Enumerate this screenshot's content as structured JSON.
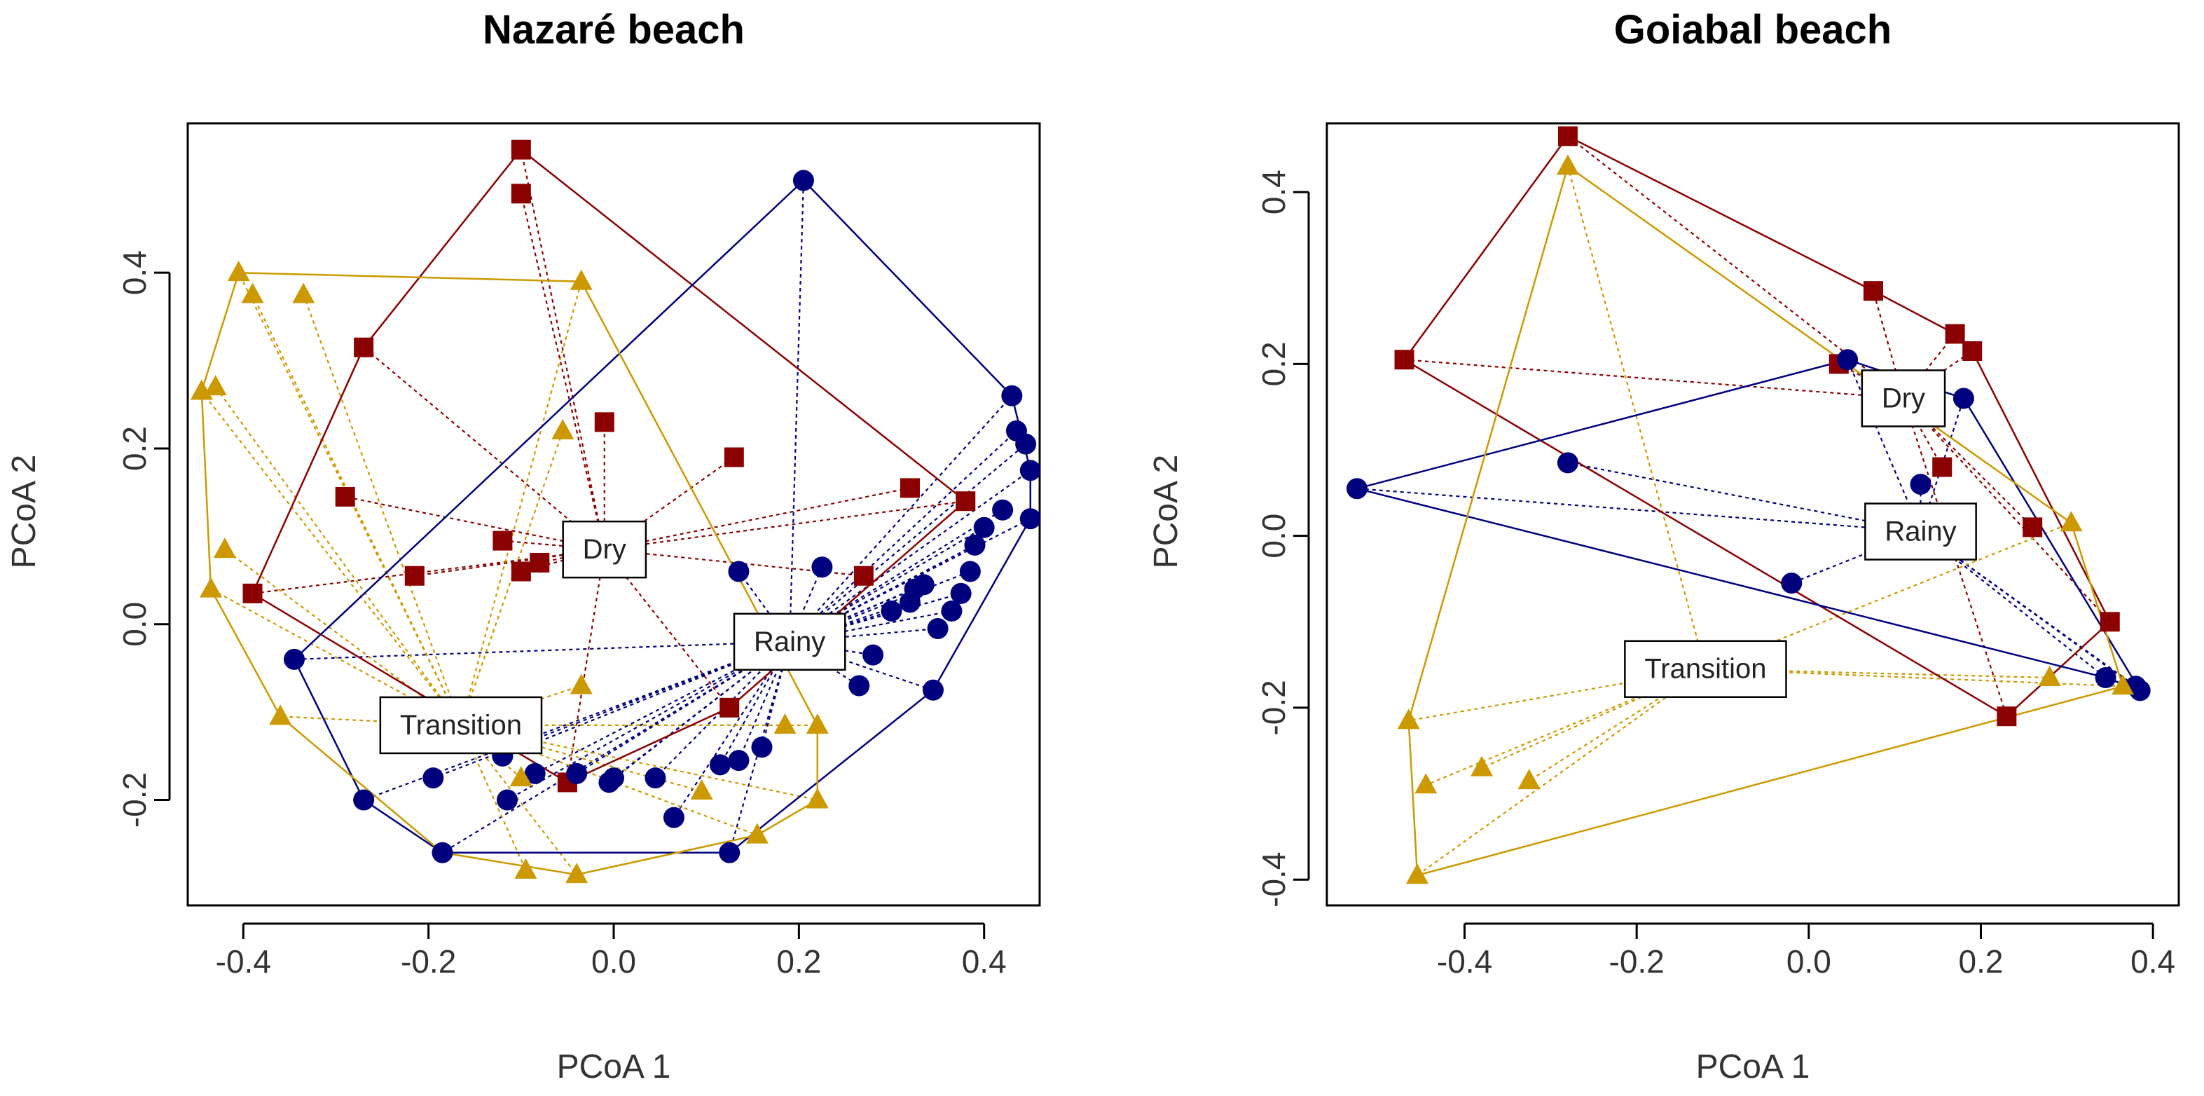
{
  "figure": {
    "colors": {
      "dry": "#8b0000",
      "rainy": "#00007f",
      "transition": "#cc9900",
      "axis": "#000000"
    }
  },
  "chart_data": [
    {
      "type": "scatter",
      "title": "Nazaré beach",
      "xlabel": "PCoA 1",
      "ylabel": "PCoA 2",
      "xlim": [
        -0.46,
        0.46
      ],
      "ylim": [
        -0.32,
        0.57
      ],
      "xticks": [
        -0.4,
        -0.2,
        0.0,
        0.2,
        0.4
      ],
      "yticks": [
        -0.2,
        0.0,
        0.2,
        0.4
      ],
      "xtick_labels": [
        "-0.4",
        "-0.2",
        "0.0",
        "0.2",
        "0.4"
      ],
      "ytick_labels": [
        "-0.2",
        "0.0",
        "0.2",
        "0.4"
      ],
      "grid": false,
      "groups": [
        {
          "name": "Dry",
          "label_pos": [
            -0.01,
            0.085
          ],
          "marker": "square",
          "color": "#8b0000",
          "points": [
            [
              -0.1,
              0.54
            ],
            [
              -0.1,
              0.49
            ],
            [
              -0.27,
              0.315
            ],
            [
              -0.29,
              0.145
            ],
            [
              -0.39,
              0.035
            ],
            [
              -0.215,
              0.055
            ],
            [
              -0.12,
              0.095
            ],
            [
              -0.1,
              0.06
            ],
            [
              -0.08,
              0.07
            ],
            [
              -0.01,
              0.23
            ],
            [
              0.13,
              0.19
            ],
            [
              0.32,
              0.155
            ],
            [
              0.38,
              0.14
            ],
            [
              0.27,
              0.055
            ],
            [
              0.125,
              -0.095
            ],
            [
              -0.05,
              -0.18
            ]
          ],
          "hull": [
            [
              -0.1,
              0.54
            ],
            [
              0.38,
              0.14
            ],
            [
              0.125,
              -0.095
            ],
            [
              -0.05,
              -0.18
            ],
            [
              -0.39,
              0.035
            ],
            [
              -0.27,
              0.315
            ],
            [
              -0.1,
              0.54
            ]
          ]
        },
        {
          "name": "Rainy",
          "label_pos": [
            0.19,
            -0.02
          ],
          "marker": "circle",
          "color": "#00007f",
          "points": [
            [
              0.205,
              0.505
            ],
            [
              0.43,
              0.26
            ],
            [
              0.435,
              0.22
            ],
            [
              0.445,
              0.205
            ],
            [
              0.45,
              0.175
            ],
            [
              0.45,
              0.12
            ],
            [
              0.42,
              0.13
            ],
            [
              0.4,
              0.11
            ],
            [
              0.39,
              0.09
            ],
            [
              0.385,
              0.06
            ],
            [
              0.375,
              0.035
            ],
            [
              0.365,
              0.015
            ],
            [
              0.35,
              -0.005
            ],
            [
              0.335,
              0.045
            ],
            [
              0.325,
              0.04
            ],
            [
              0.32,
              0.025
            ],
            [
              0.3,
              0.015
            ],
            [
              0.28,
              -0.035
            ],
            [
              0.265,
              -0.07
            ],
            [
              0.345,
              -0.075
            ],
            [
              0.225,
              0.065
            ],
            [
              0.135,
              0.06
            ],
            [
              0.16,
              -0.14
            ],
            [
              0.135,
              -0.155
            ],
            [
              0.115,
              -0.16
            ],
            [
              0.125,
              -0.26
            ],
            [
              0.065,
              -0.22
            ],
            [
              0.045,
              -0.175
            ],
            [
              0.0,
              -0.175
            ],
            [
              -0.005,
              -0.18
            ],
            [
              -0.085,
              -0.17
            ],
            [
              -0.115,
              -0.2
            ],
            [
              -0.185,
              -0.26
            ],
            [
              -0.195,
              -0.175
            ],
            [
              -0.27,
              -0.2
            ],
            [
              -0.345,
              -0.04
            ],
            [
              -0.04,
              -0.17
            ],
            [
              -0.12,
              -0.15
            ]
          ],
          "hull": [
            [
              0.205,
              0.505
            ],
            [
              0.43,
              0.26
            ],
            [
              0.45,
              0.175
            ],
            [
              0.45,
              0.12
            ],
            [
              0.345,
              -0.075
            ],
            [
              0.125,
              -0.26
            ],
            [
              -0.185,
              -0.26
            ],
            [
              -0.27,
              -0.2
            ],
            [
              -0.345,
              -0.04
            ],
            [
              0.205,
              0.505
            ]
          ]
        },
        {
          "name": "Transition",
          "label_pos": [
            -0.165,
            -0.115
          ],
          "marker": "triangle",
          "color": "#cc9900",
          "points": [
            [
              -0.405,
              0.4
            ],
            [
              -0.39,
              0.375
            ],
            [
              -0.335,
              0.375
            ],
            [
              -0.035,
              0.39
            ],
            [
              -0.445,
              0.265
            ],
            [
              -0.43,
              0.27
            ],
            [
              -0.42,
              0.085
            ],
            [
              -0.435,
              0.04
            ],
            [
              -0.36,
              -0.105
            ],
            [
              -0.055,
              0.22
            ],
            [
              -0.035,
              -0.07
            ],
            [
              -0.1,
              -0.175
            ],
            [
              -0.095,
              -0.28
            ],
            [
              -0.04,
              -0.285
            ],
            [
              0.155,
              -0.24
            ],
            [
              0.22,
              -0.2
            ],
            [
              0.22,
              -0.115
            ],
            [
              0.185,
              -0.115
            ],
            [
              0.095,
              -0.19
            ]
          ],
          "hull": [
            [
              -0.405,
              0.4
            ],
            [
              -0.035,
              0.39
            ],
            [
              0.22,
              -0.115
            ],
            [
              0.22,
              -0.2
            ],
            [
              0.155,
              -0.24
            ],
            [
              -0.04,
              -0.285
            ],
            [
              -0.185,
              -0.26
            ],
            [
              -0.36,
              -0.105
            ],
            [
              -0.435,
              0.04
            ],
            [
              -0.445,
              0.265
            ],
            [
              -0.405,
              0.4
            ]
          ]
        }
      ]
    },
    {
      "type": "scatter",
      "title": "Goiabal beach",
      "xlabel": "PCoA 1",
      "ylabel": "PCoA 2",
      "xlim": [
        -0.56,
        0.43
      ],
      "ylim": [
        -0.43,
        0.48
      ],
      "xticks": [
        -0.4,
        -0.2,
        0.0,
        0.2,
        0.4
      ],
      "yticks": [
        -0.4,
        -0.2,
        0.0,
        0.2,
        0.4
      ],
      "xtick_labels": [
        "-0.4",
        "-0.2",
        "0.0",
        "0.2",
        "0.4"
      ],
      "ytick_labels": [
        "-0.4",
        "-0.2",
        "0.0",
        "0.2",
        "0.4"
      ],
      "grid": false,
      "groups": [
        {
          "name": "Dry",
          "label_pos": [
            0.11,
            0.16
          ],
          "marker": "square",
          "color": "#8b0000",
          "points": [
            [
              -0.28,
              0.465
            ],
            [
              0.075,
              0.285
            ],
            [
              0.17,
              0.235
            ],
            [
              0.19,
              0.215
            ],
            [
              0.035,
              0.2
            ],
            [
              -0.47,
              0.205
            ],
            [
              0.155,
              0.08
            ],
            [
              0.26,
              0.01
            ],
            [
              0.35,
              -0.1
            ],
            [
              0.23,
              -0.21
            ]
          ],
          "hull": [
            [
              -0.28,
              0.465
            ],
            [
              0.075,
              0.285
            ],
            [
              0.17,
              0.235
            ],
            [
              0.19,
              0.215
            ],
            [
              0.35,
              -0.1
            ],
            [
              0.23,
              -0.21
            ],
            [
              -0.47,
              0.205
            ],
            [
              -0.28,
              0.465
            ]
          ]
        },
        {
          "name": "Rainy",
          "label_pos": [
            0.13,
            0.005
          ],
          "marker": "circle",
          "color": "#00007f",
          "points": [
            [
              0.045,
              0.205
            ],
            [
              0.18,
              0.16
            ],
            [
              -0.525,
              0.055
            ],
            [
              -0.28,
              0.085
            ],
            [
              0.13,
              0.06
            ],
            [
              -0.02,
              -0.055
            ],
            [
              0.345,
              -0.165
            ],
            [
              0.38,
              -0.175
            ],
            [
              0.385,
              -0.18
            ]
          ],
          "hull": [
            [
              -0.525,
              0.055
            ],
            [
              0.045,
              0.205
            ],
            [
              0.18,
              0.16
            ],
            [
              0.385,
              -0.18
            ],
            [
              0.345,
              -0.165
            ],
            [
              -0.525,
              0.055
            ]
          ]
        },
        {
          "name": "Transition",
          "label_pos": [
            -0.12,
            -0.155
          ],
          "marker": "triangle",
          "color": "#cc9900",
          "points": [
            [
              -0.28,
              0.43
            ],
            [
              0.305,
              0.015
            ],
            [
              0.28,
              -0.165
            ],
            [
              0.365,
              -0.175
            ],
            [
              -0.465,
              -0.215
            ],
            [
              -0.445,
              -0.29
            ],
            [
              -0.38,
              -0.27
            ],
            [
              -0.325,
              -0.285
            ],
            [
              -0.455,
              -0.395
            ]
          ],
          "hull": [
            [
              -0.28,
              0.43
            ],
            [
              0.305,
              0.015
            ],
            [
              0.365,
              -0.175
            ],
            [
              -0.455,
              -0.395
            ],
            [
              -0.465,
              -0.215
            ],
            [
              -0.28,
              0.43
            ]
          ]
        }
      ]
    }
  ]
}
